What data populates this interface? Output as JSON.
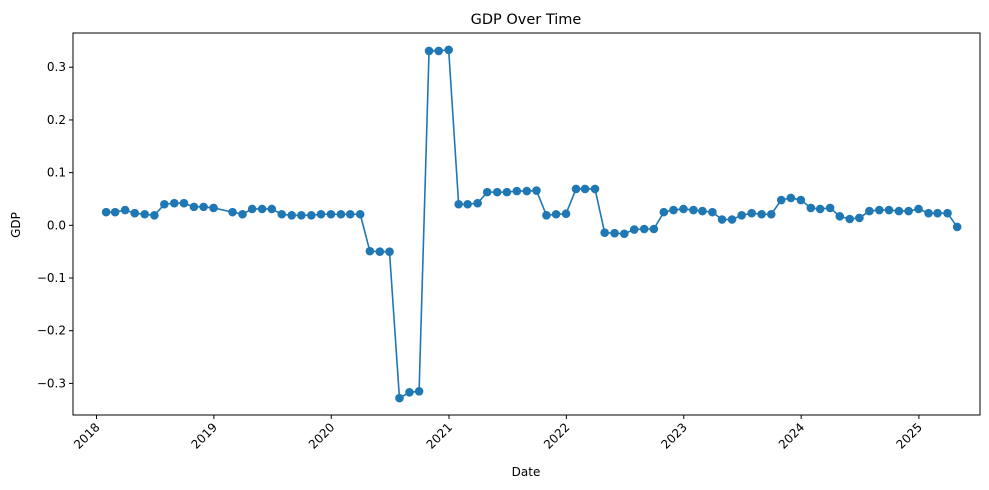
{
  "chart_data": {
    "type": "line",
    "title": "GDP Over Time",
    "xlabel": "Date",
    "ylabel": "GDP",
    "grid": false,
    "legend": "none",
    "color": "#1f77b4",
    "xlim": [
      "2017-10-20",
      "2025-07-10"
    ],
    "ylim": [
      -0.36,
      0.365
    ],
    "xticks": [
      {
        "date": "2018-01-01",
        "label": "2018"
      },
      {
        "date": "2019-01-01",
        "label": "2019"
      },
      {
        "date": "2020-01-01",
        "label": "2020"
      },
      {
        "date": "2021-01-01",
        "label": "2021"
      },
      {
        "date": "2022-01-01",
        "label": "2022"
      },
      {
        "date": "2023-01-01",
        "label": "2023"
      },
      {
        "date": "2024-01-01",
        "label": "2024"
      },
      {
        "date": "2025-01-01",
        "label": "2025"
      }
    ],
    "yticks": [
      {
        "value": -0.3,
        "label": "−0.3"
      },
      {
        "value": -0.2,
        "label": "−0.2"
      },
      {
        "value": -0.1,
        "label": "−0.1"
      },
      {
        "value": 0.0,
        "label": "0.0"
      },
      {
        "value": 0.1,
        "label": "0.1"
      },
      {
        "value": 0.2,
        "label": "0.2"
      },
      {
        "value": 0.3,
        "label": "0.3"
      }
    ],
    "series": [
      {
        "points": [
          {
            "x": "2018-01-31",
            "y": 0.025
          },
          {
            "x": "2018-02-28",
            "y": 0.025
          },
          {
            "x": "2018-03-31",
            "y": 0.029
          },
          {
            "x": "2018-04-30",
            "y": 0.023
          },
          {
            "x": "2018-05-31",
            "y": 0.021
          },
          {
            "x": "2018-06-30",
            "y": 0.019
          },
          {
            "x": "2018-07-31",
            "y": 0.04
          },
          {
            "x": "2018-08-31",
            "y": 0.042
          },
          {
            "x": "2018-09-30",
            "y": 0.042
          },
          {
            "x": "2018-10-31",
            "y": 0.035
          },
          {
            "x": "2018-11-30",
            "y": 0.035
          },
          {
            "x": "2018-12-31",
            "y": 0.033
          },
          {
            "x": "2019-02-28",
            "y": 0.025
          },
          {
            "x": "2019-03-31",
            "y": 0.021
          },
          {
            "x": "2019-04-30",
            "y": 0.031
          },
          {
            "x": "2019-05-31",
            "y": 0.031
          },
          {
            "x": "2019-06-30",
            "y": 0.031
          },
          {
            "x": "2019-07-31",
            "y": 0.021
          },
          {
            "x": "2019-08-31",
            "y": 0.019
          },
          {
            "x": "2019-09-30",
            "y": 0.019
          },
          {
            "x": "2019-10-31",
            "y": 0.019
          },
          {
            "x": "2019-11-30",
            "y": 0.021
          },
          {
            "x": "2019-12-31",
            "y": 0.021
          },
          {
            "x": "2020-01-31",
            "y": 0.021
          },
          {
            "x": "2020-02-29",
            "y": 0.021
          },
          {
            "x": "2020-03-31",
            "y": 0.021
          },
          {
            "x": "2020-04-30",
            "y": -0.049
          },
          {
            "x": "2020-05-31",
            "y": -0.05
          },
          {
            "x": "2020-06-30",
            "y": -0.05
          },
          {
            "x": "2020-07-31",
            "y": -0.328
          },
          {
            "x": "2020-08-31",
            "y": -0.317
          },
          {
            "x": "2020-09-30",
            "y": -0.315
          },
          {
            "x": "2020-10-31",
            "y": 0.331
          },
          {
            "x": "2020-11-30",
            "y": 0.331
          },
          {
            "x": "2020-12-31",
            "y": 0.333
          },
          {
            "x": "2021-01-31",
            "y": 0.04
          },
          {
            "x": "2021-02-28",
            "y": 0.04
          },
          {
            "x": "2021-03-31",
            "y": 0.042
          },
          {
            "x": "2021-04-30",
            "y": 0.063
          },
          {
            "x": "2021-05-31",
            "y": 0.063
          },
          {
            "x": "2021-06-30",
            "y": 0.063
          },
          {
            "x": "2021-07-31",
            "y": 0.065
          },
          {
            "x": "2021-08-31",
            "y": 0.065
          },
          {
            "x": "2021-09-30",
            "y": 0.066
          },
          {
            "x": "2021-10-31",
            "y": 0.019
          },
          {
            "x": "2021-11-30",
            "y": 0.021
          },
          {
            "x": "2021-12-31",
            "y": 0.022
          },
          {
            "x": "2022-01-31",
            "y": 0.069
          },
          {
            "x": "2022-02-28",
            "y": 0.069
          },
          {
            "x": "2022-03-31",
            "y": 0.069
          },
          {
            "x": "2022-04-30",
            "y": -0.014
          },
          {
            "x": "2022-05-31",
            "y": -0.015
          },
          {
            "x": "2022-06-30",
            "y": -0.016
          },
          {
            "x": "2022-07-31",
            "y": -0.008
          },
          {
            "x": "2022-08-31",
            "y": -0.007
          },
          {
            "x": "2022-09-30",
            "y": -0.007
          },
          {
            "x": "2022-10-31",
            "y": 0.025
          },
          {
            "x": "2022-11-30",
            "y": 0.029
          },
          {
            "x": "2022-12-31",
            "y": 0.031
          },
          {
            "x": "2023-01-31",
            "y": 0.029
          },
          {
            "x": "2023-02-28",
            "y": 0.027
          },
          {
            "x": "2023-03-31",
            "y": 0.025
          },
          {
            "x": "2023-04-30",
            "y": 0.011
          },
          {
            "x": "2023-05-31",
            "y": 0.011
          },
          {
            "x": "2023-06-30",
            "y": 0.019
          },
          {
            "x": "2023-07-31",
            "y": 0.023
          },
          {
            "x": "2023-08-31",
            "y": 0.021
          },
          {
            "x": "2023-09-30",
            "y": 0.021
          },
          {
            "x": "2023-10-31",
            "y": 0.048
          },
          {
            "x": "2023-11-30",
            "y": 0.052
          },
          {
            "x": "2023-12-31",
            "y": 0.048
          },
          {
            "x": "2024-01-31",
            "y": 0.033
          },
          {
            "x": "2024-02-29",
            "y": 0.031
          },
          {
            "x": "2024-03-31",
            "y": 0.033
          },
          {
            "x": "2024-04-30",
            "y": 0.017
          },
          {
            "x": "2024-05-31",
            "y": 0.012
          },
          {
            "x": "2024-06-30",
            "y": 0.014
          },
          {
            "x": "2024-07-31",
            "y": 0.027
          },
          {
            "x": "2024-08-31",
            "y": 0.029
          },
          {
            "x": "2024-09-30",
            "y": 0.029
          },
          {
            "x": "2024-10-31",
            "y": 0.027
          },
          {
            "x": "2024-11-30",
            "y": 0.027
          },
          {
            "x": "2024-12-31",
            "y": 0.031
          },
          {
            "x": "2025-01-31",
            "y": 0.023
          },
          {
            "x": "2025-02-28",
            "y": 0.023
          },
          {
            "x": "2025-03-31",
            "y": 0.023
          },
          {
            "x": "2025-04-30",
            "y": -0.003
          }
        ]
      }
    ]
  }
}
